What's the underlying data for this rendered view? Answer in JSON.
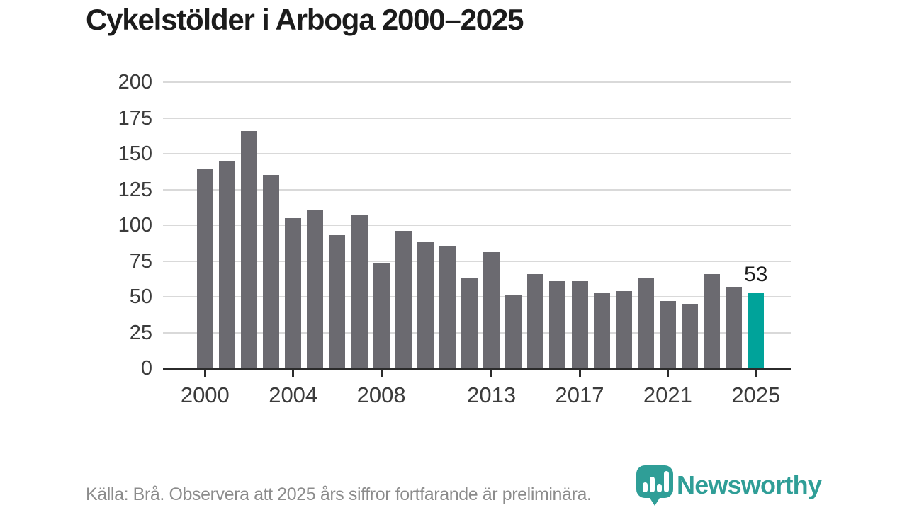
{
  "title": "Cykelstölder i Arboga 2000–2025",
  "chart_data": {
    "type": "bar",
    "title": "Cykelstölder i Arboga 2000–2025",
    "categories": [
      2000,
      2001,
      2002,
      2003,
      2004,
      2005,
      2006,
      2007,
      2008,
      2009,
      2010,
      2011,
      2012,
      2013,
      2014,
      2015,
      2016,
      2017,
      2018,
      2019,
      2020,
      2021,
      2022,
      2023,
      2024,
      2025
    ],
    "values": [
      139,
      145,
      166,
      135,
      105,
      111,
      93,
      107,
      74,
      96,
      88,
      85,
      63,
      81,
      51,
      66,
      61,
      61,
      53,
      54,
      63,
      47,
      45,
      66,
      57,
      53
    ],
    "xlabel": "",
    "ylabel": "",
    "ylim": [
      0,
      200
    ],
    "y_ticks": [
      0,
      25,
      50,
      75,
      100,
      125,
      150,
      175,
      200
    ],
    "x_tick_years": [
      2000,
      2004,
      2008,
      2013,
      2017,
      2021,
      2025
    ],
    "grid": "horizontal",
    "legend": "none",
    "bar_color": "#6b6a70",
    "highlight_year": 2025,
    "highlight_color": "#00a39a",
    "highlight_value_label": "53"
  },
  "footer": {
    "source_note": "Källa: Brå. Observera att 2025 års siffror fortfarande är preliminära."
  },
  "logo": {
    "text": "Newsworthy",
    "color": "#2f9e97",
    "icon": "newsworthy-barchart-pin-icon"
  }
}
